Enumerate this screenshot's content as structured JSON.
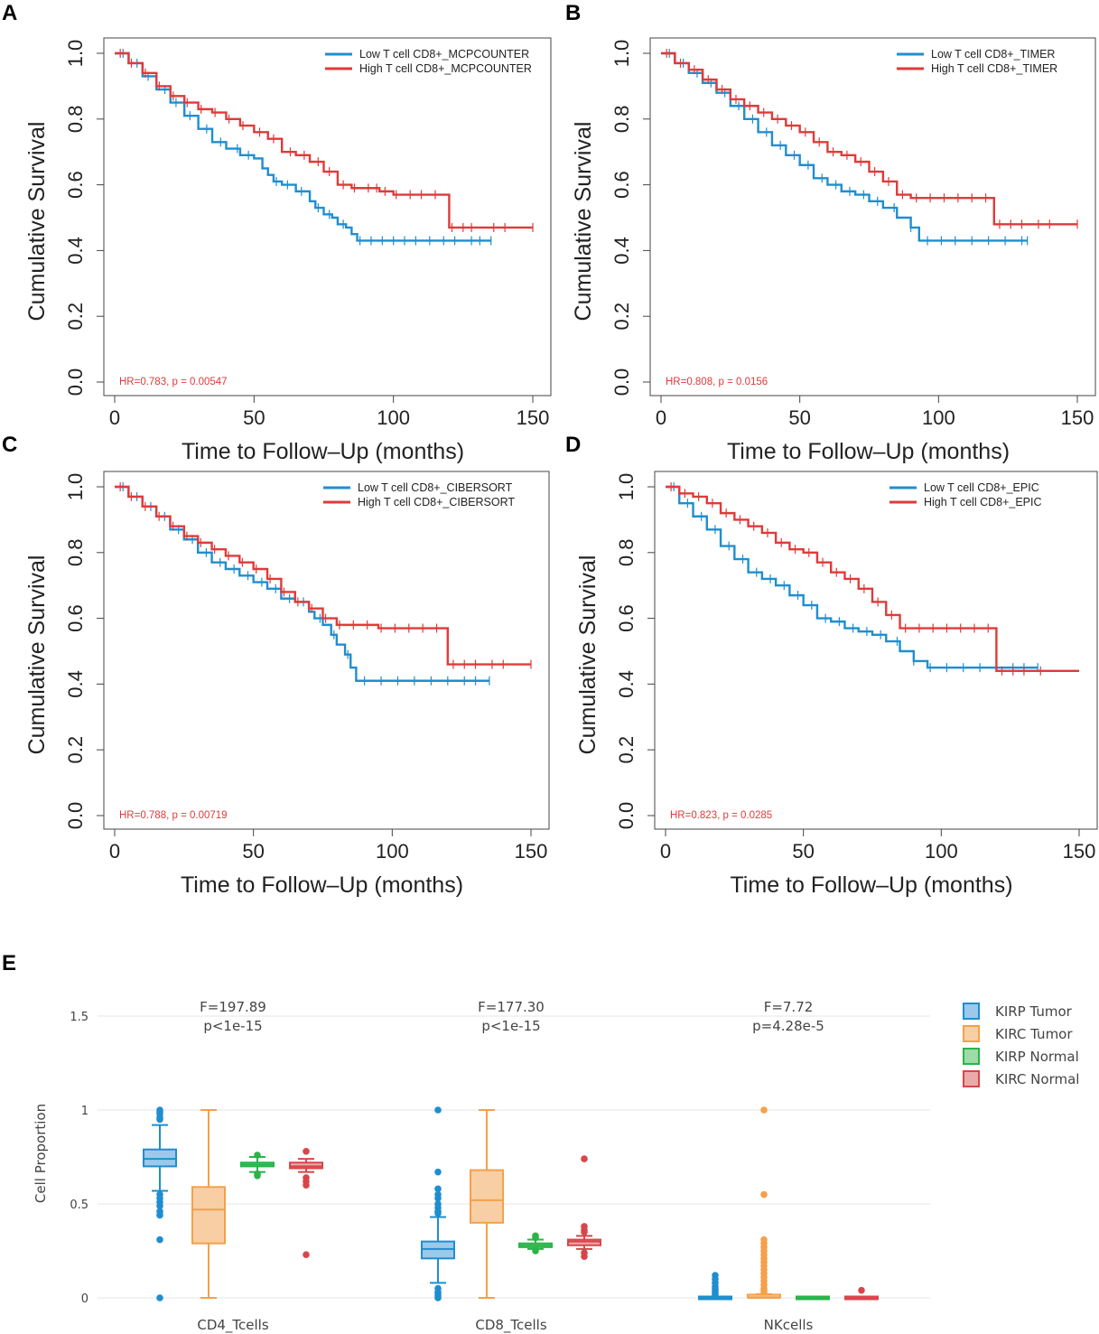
{
  "colors": {
    "low": "#1f8ecf",
    "high": "#e03a3a",
    "hr_text": "#e03a3a"
  },
  "chart_data": [
    {
      "type": "line",
      "panel": "A",
      "xlabel": "Time to Follow–Up (months)",
      "ylabel": "Cumulative Survival",
      "xlim": [
        0,
        150
      ],
      "ylim": [
        0,
        1
      ],
      "xticks": [
        "0",
        "50",
        "100",
        "150"
      ],
      "yticks": [
        "0.0",
        "0.2",
        "0.4",
        "0.6",
        "0.8",
        "1.0"
      ],
      "legend": [
        "Low T cell CD8+_MCPCOUNTER",
        "High T cell CD8+_MCPCOUNTER"
      ],
      "annotation": "HR=0.783, p = 0.00547",
      "series": [
        {
          "name": "Low T cell CD8+_MCPCOUNTER",
          "color": "low",
          "x": [
            0,
            5,
            10,
            15,
            20,
            25,
            30,
            35,
            40,
            45,
            50,
            53,
            55,
            57,
            60,
            65,
            70,
            72,
            75,
            78,
            80,
            83,
            85,
            87,
            90,
            95,
            100,
            110,
            120,
            130,
            135
          ],
          "y": [
            1.0,
            0.97,
            0.93,
            0.89,
            0.85,
            0.81,
            0.77,
            0.73,
            0.71,
            0.69,
            0.68,
            0.65,
            0.63,
            0.61,
            0.6,
            0.58,
            0.55,
            0.53,
            0.51,
            0.5,
            0.48,
            0.47,
            0.45,
            0.43,
            0.43,
            0.43,
            0.43,
            0.43,
            0.43,
            0.43,
            0.43
          ]
        },
        {
          "name": "High T cell CD8+_MCPCOUNTER",
          "color": "high",
          "x": [
            0,
            5,
            10,
            15,
            20,
            25,
            30,
            35,
            40,
            45,
            50,
            55,
            60,
            65,
            70,
            75,
            80,
            85,
            90,
            95,
            100,
            105,
            110,
            115,
            118,
            120,
            125,
            130,
            140,
            150
          ],
          "y": [
            1.0,
            0.97,
            0.94,
            0.9,
            0.87,
            0.85,
            0.83,
            0.82,
            0.8,
            0.78,
            0.76,
            0.74,
            0.7,
            0.69,
            0.67,
            0.64,
            0.6,
            0.59,
            0.59,
            0.58,
            0.57,
            0.57,
            0.57,
            0.57,
            0.57,
            0.47,
            0.47,
            0.47,
            0.47,
            0.47
          ]
        }
      ],
      "censor_low": [
        3,
        8,
        12,
        18,
        22,
        27,
        33,
        38,
        44,
        48,
        58,
        62,
        67,
        73,
        77,
        82,
        88,
        92,
        96,
        100,
        104,
        108,
        113,
        118,
        122,
        128,
        131,
        135
      ],
      "censor_high": [
        2,
        6,
        11,
        16,
        21,
        26,
        31,
        36,
        41,
        46,
        52,
        57,
        63,
        68,
        73,
        77,
        82,
        86,
        91,
        94,
        97,
        101,
        106,
        110,
        115,
        121,
        125,
        128,
        136,
        140,
        150
      ]
    },
    {
      "type": "line",
      "panel": "B",
      "xlabel": "Time to Follow–Up (months)",
      "ylabel": "Cumulative Survival",
      "xlim": [
        0,
        150
      ],
      "ylim": [
        0,
        1
      ],
      "xticks": [
        "0",
        "50",
        "100",
        "150"
      ],
      "yticks": [
        "0.0",
        "0.2",
        "0.4",
        "0.6",
        "0.8",
        "1.0"
      ],
      "legend": [
        "Low T cell CD8+_TIMER",
        "High T cell CD8+_TIMER"
      ],
      "annotation": "HR=0.808, p = 0.0156",
      "series": [
        {
          "name": "Low T cell CD8+_TIMER",
          "color": "low",
          "x": [
            0,
            5,
            10,
            15,
            20,
            25,
            30,
            35,
            40,
            45,
            50,
            55,
            60,
            65,
            70,
            75,
            80,
            85,
            90,
            93,
            95,
            100,
            110,
            120,
            130,
            132
          ],
          "y": [
            1.0,
            0.97,
            0.94,
            0.91,
            0.88,
            0.84,
            0.8,
            0.76,
            0.72,
            0.69,
            0.66,
            0.62,
            0.6,
            0.58,
            0.57,
            0.55,
            0.53,
            0.5,
            0.47,
            0.43,
            0.43,
            0.43,
            0.43,
            0.43,
            0.43,
            0.43
          ]
        },
        {
          "name": "High T cell CD8+_TIMER",
          "color": "high",
          "x": [
            0,
            5,
            10,
            15,
            20,
            25,
            30,
            35,
            40,
            45,
            50,
            55,
            60,
            65,
            70,
            75,
            80,
            85,
            90,
            100,
            110,
            118,
            120,
            125,
            130,
            140,
            150
          ],
          "y": [
            1.0,
            0.97,
            0.95,
            0.92,
            0.89,
            0.86,
            0.84,
            0.82,
            0.8,
            0.78,
            0.76,
            0.73,
            0.7,
            0.69,
            0.67,
            0.64,
            0.61,
            0.57,
            0.56,
            0.56,
            0.56,
            0.56,
            0.48,
            0.48,
            0.48,
            0.48,
            0.48
          ]
        }
      ],
      "censor_low": [
        3,
        8,
        13,
        18,
        23,
        28,
        33,
        38,
        43,
        48,
        53,
        58,
        63,
        68,
        73,
        78,
        84,
        90,
        96,
        101,
        106,
        112,
        118,
        124,
        130,
        132
      ],
      "censor_high": [
        2,
        7,
        12,
        17,
        22,
        27,
        32,
        37,
        42,
        47,
        52,
        57,
        62,
        67,
        72,
        77,
        82,
        87,
        92,
        97,
        102,
        107,
        112,
        117,
        122,
        126,
        130,
        136,
        140,
        150
      ]
    },
    {
      "type": "line",
      "panel": "C",
      "xlabel": "Time to Follow–Up (months)",
      "ylabel": "Cumulative Survival",
      "xlim": [
        0,
        150
      ],
      "ylim": [
        0,
        1
      ],
      "xticks": [
        "0",
        "50",
        "100",
        "150"
      ],
      "yticks": [
        "0.0",
        "0.2",
        "0.4",
        "0.6",
        "0.8",
        "1.0"
      ],
      "legend": [
        "Low T cell CD8+_CIBERSORT",
        "High T cell CD8+_CIBERSORT"
      ],
      "annotation": "HR=0.788, p = 0.00719",
      "series": [
        {
          "name": "Low T cell CD8+_CIBERSORT",
          "color": "low",
          "x": [
            0,
            5,
            10,
            15,
            20,
            25,
            30,
            35,
            40,
            45,
            50,
            55,
            60,
            65,
            70,
            72,
            75,
            78,
            80,
            83,
            85,
            87,
            90,
            95,
            100,
            110,
            120,
            130,
            135
          ],
          "y": [
            1.0,
            0.97,
            0.94,
            0.91,
            0.87,
            0.84,
            0.8,
            0.77,
            0.75,
            0.73,
            0.71,
            0.69,
            0.66,
            0.65,
            0.62,
            0.6,
            0.58,
            0.55,
            0.52,
            0.49,
            0.45,
            0.41,
            0.41,
            0.41,
            0.41,
            0.41,
            0.41,
            0.41,
            0.41
          ]
        },
        {
          "name": "High T cell CD8+_CIBERSORT",
          "color": "high",
          "x": [
            0,
            5,
            10,
            15,
            20,
            25,
            30,
            35,
            40,
            45,
            50,
            55,
            60,
            65,
            70,
            75,
            80,
            85,
            90,
            95,
            100,
            105,
            110,
            115,
            118,
            120,
            125,
            130,
            140,
            150
          ],
          "y": [
            1.0,
            0.97,
            0.94,
            0.91,
            0.88,
            0.85,
            0.83,
            0.81,
            0.79,
            0.77,
            0.75,
            0.72,
            0.68,
            0.65,
            0.63,
            0.6,
            0.58,
            0.58,
            0.58,
            0.57,
            0.57,
            0.57,
            0.57,
            0.57,
            0.57,
            0.46,
            0.46,
            0.46,
            0.46,
            0.46
          ]
        }
      ],
      "censor_low": [
        3,
        8,
        13,
        18,
        23,
        28,
        33,
        38,
        43,
        48,
        53,
        58,
        63,
        68,
        74,
        79,
        84,
        90,
        96,
        102,
        108,
        114,
        120,
        126,
        130,
        135
      ],
      "censor_high": [
        2,
        6,
        11,
        16,
        21,
        26,
        31,
        36,
        41,
        46,
        51,
        56,
        61,
        66,
        71,
        76,
        81,
        86,
        91,
        96,
        101,
        106,
        111,
        116,
        122,
        126,
        130,
        136,
        140,
        150
      ]
    },
    {
      "type": "line",
      "panel": "D",
      "xlabel": "Time to Follow–Up (months)",
      "ylabel": "Cumulative Survival",
      "xlim": [
        0,
        150
      ],
      "ylim": [
        0,
        1
      ],
      "xticks": [
        "0",
        "50",
        "100",
        "150"
      ],
      "yticks": [
        "0.0",
        "0.2",
        "0.4",
        "0.6",
        "0.8",
        "1.0"
      ],
      "legend": [
        "Low T cell CD8+_EPIC",
        "High T cell CD8+_EPIC"
      ],
      "annotation": "HR=0.823, p = 0.0285",
      "series": [
        {
          "name": "Low T cell CD8+_EPIC",
          "color": "low",
          "x": [
            0,
            5,
            10,
            15,
            20,
            25,
            30,
            35,
            40,
            45,
            50,
            55,
            60,
            65,
            70,
            75,
            80,
            85,
            90,
            95,
            100,
            110,
            120,
            130,
            135
          ],
          "y": [
            1.0,
            0.95,
            0.91,
            0.87,
            0.82,
            0.78,
            0.74,
            0.72,
            0.7,
            0.67,
            0.64,
            0.6,
            0.59,
            0.57,
            0.56,
            0.55,
            0.53,
            0.5,
            0.47,
            0.45,
            0.45,
            0.45,
            0.45,
            0.45,
            0.45
          ]
        },
        {
          "name": "High T cell CD8+_EPIC",
          "color": "high",
          "x": [
            0,
            5,
            10,
            15,
            20,
            25,
            30,
            35,
            40,
            45,
            50,
            55,
            60,
            65,
            70,
            75,
            80,
            85,
            90,
            95,
            100,
            110,
            118,
            120,
            125,
            130,
            140,
            150
          ],
          "y": [
            1.0,
            0.98,
            0.97,
            0.95,
            0.92,
            0.9,
            0.88,
            0.86,
            0.83,
            0.81,
            0.8,
            0.77,
            0.74,
            0.72,
            0.69,
            0.65,
            0.61,
            0.57,
            0.57,
            0.57,
            0.57,
            0.57,
            0.57,
            0.44,
            0.44,
            0.44,
            0.44,
            0.44
          ]
        }
      ],
      "censor_low": [
        3,
        8,
        13,
        18,
        23,
        28,
        33,
        38,
        43,
        48,
        53,
        58,
        63,
        68,
        73,
        78,
        84,
        90,
        96,
        102,
        108,
        114,
        120,
        126,
        130,
        135
      ],
      "censor_high": [
        2,
        7,
        12,
        17,
        22,
        27,
        32,
        37,
        42,
        47,
        52,
        57,
        62,
        67,
        72,
        77,
        82,
        87,
        92,
        97,
        102,
        107,
        112,
        117,
        122,
        126,
        130,
        136
      ]
    },
    {
      "type": "box",
      "panel": "E",
      "ylabel": "Cell Proportion",
      "ylim": [
        0,
        1.5
      ],
      "yticks": [
        "0",
        "0.5",
        "1",
        "1.5"
      ],
      "categories": [
        "CD4_Tcells",
        "CD8_Tcells",
        "NKcells"
      ],
      "annotations": [
        {
          "f": "F=197.89",
          "p": "p<1e-15"
        },
        {
          "f": "F=177.30",
          "p": "p<1e-15"
        },
        {
          "f": "F=7.72",
          "p": "p=4.28e-5"
        }
      ],
      "legend": [
        "KIRP Tumor",
        "KIRC Tumor",
        "KIRP Normal",
        "KIRC Normal"
      ],
      "series_colors": [
        "#1f8ecf",
        "#f5a04a",
        "#2bb34a",
        "#d9454a"
      ],
      "series_fills": [
        "#9cc9ea",
        "#f8cfa5",
        "#9edba9",
        "#eca9a9"
      ],
      "series": [
        {
          "name": "KIRP Tumor",
          "boxes": [
            {
              "min": 0.57,
              "q1": 0.7,
              "median": 0.74,
              "q3": 0.79,
              "max": 0.92,
              "outliers": [
                1.0,
                0.99,
                0.98,
                0.96,
                0.95,
                0.55,
                0.53,
                0.51,
                0.49,
                0.46,
                0.44,
                0.31,
                0.0
              ]
            },
            {
              "min": 0.08,
              "q1": 0.21,
              "median": 0.26,
              "q3": 0.3,
              "max": 0.43,
              "outliers": [
                1.0,
                0.67,
                0.58,
                0.55,
                0.53,
                0.5,
                0.48,
                0.46,
                0.45,
                0.05,
                0.03,
                0.02,
                0.01,
                0.0
              ]
            },
            {
              "min": 0,
              "q1": 0,
              "median": 0,
              "q3": 0,
              "max": 0,
              "outliers": [
                0.12,
                0.1,
                0.08,
                0.06,
                0.05,
                0.04,
                0.03,
                0.02,
                0.01
              ]
            }
          ]
        },
        {
          "name": "KIRC Tumor",
          "boxes": [
            {
              "min": 0.0,
              "q1": 0.29,
              "median": 0.47,
              "q3": 0.59,
              "max": 1.0,
              "outliers": []
            },
            {
              "min": 0.0,
              "q1": 0.4,
              "median": 0.52,
              "q3": 0.68,
              "max": 1.0,
              "outliers": []
            },
            {
              "min": 0,
              "q1": 0,
              "median": 0,
              "q3": 0.01,
              "max": 0.02,
              "outliers": [
                1.0,
                0.55,
                0.31,
                0.29,
                0.27,
                0.25,
                0.23,
                0.21,
                0.19,
                0.17,
                0.15,
                0.13,
                0.11,
                0.09,
                0.07,
                0.05,
                0.04,
                0.03
              ]
            }
          ]
        },
        {
          "name": "KIRP Normal",
          "boxes": [
            {
              "min": 0.67,
              "q1": 0.7,
              "median": 0.71,
              "q3": 0.72,
              "max": 0.75,
              "outliers": [
                0.76,
                0.66,
                0.65
              ]
            },
            {
              "min": 0.26,
              "q1": 0.27,
              "median": 0.28,
              "q3": 0.29,
              "max": 0.31,
              "outliers": [
                0.33,
                0.32,
                0.25
              ]
            },
            {
              "min": 0,
              "q1": 0,
              "median": 0,
              "q3": 0,
              "max": 0,
              "outliers": []
            }
          ]
        },
        {
          "name": "KIRC Normal",
          "boxes": [
            {
              "min": 0.67,
              "q1": 0.69,
              "median": 0.7,
              "q3": 0.72,
              "max": 0.74,
              "outliers": [
                0.78,
                0.64,
                0.62,
                0.6,
                0.23
              ]
            },
            {
              "min": 0.26,
              "q1": 0.28,
              "median": 0.3,
              "q3": 0.31,
              "max": 0.33,
              "outliers": [
                0.74,
                0.38,
                0.36,
                0.35,
                0.24,
                0.22
              ]
            },
            {
              "min": 0,
              "q1": 0,
              "median": 0,
              "q3": 0,
              "max": 0,
              "outliers": [
                0.04
              ]
            }
          ]
        }
      ]
    }
  ]
}
